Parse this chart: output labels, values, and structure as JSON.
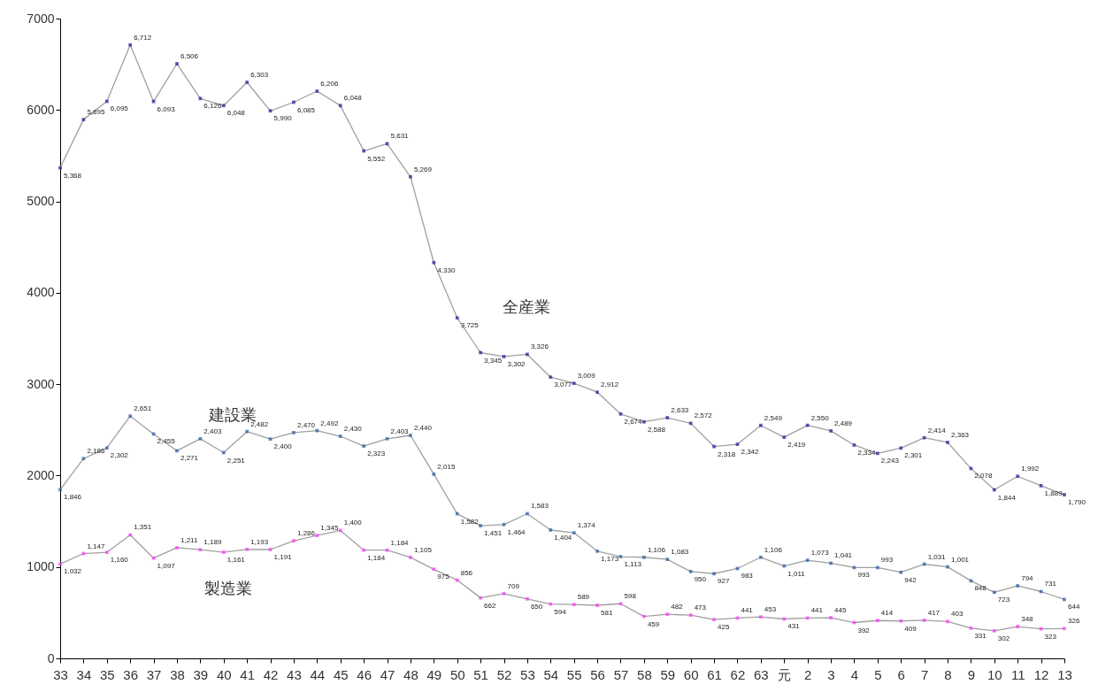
{
  "chart_data": {
    "type": "line",
    "categories": [
      "33",
      "34",
      "35",
      "36",
      "37",
      "38",
      "39",
      "40",
      "41",
      "42",
      "43",
      "44",
      "45",
      "46",
      "47",
      "48",
      "49",
      "50",
      "51",
      "52",
      "53",
      "54",
      "55",
      "56",
      "57",
      "58",
      "59",
      "60",
      "61",
      "62",
      "63",
      "元",
      "2",
      "3",
      "4",
      "5",
      "6",
      "7",
      "8",
      "9",
      "10",
      "11",
      "12",
      "13"
    ],
    "series": [
      {
        "name": "全産業",
        "color": "#1a1a9a",
        "values": [
          5368,
          5895,
          6095,
          6712,
          6093,
          6506,
          6126,
          6048,
          6303,
          5990,
          6085,
          6206,
          6048,
          5552,
          5631,
          5269,
          4330,
          3725,
          3345,
          3302,
          3326,
          3077,
          3009,
          2912,
          2674,
          2588,
          2633,
          2572,
          2318,
          2342,
          2549,
          2419,
          2550,
          2489,
          2334,
          2243,
          2301,
          2414,
          2363,
          2078,
          1844,
          1992,
          1889,
          1790
        ],
        "value_labels": [
          "5,368",
          "5,895",
          "6,095",
          "6,712",
          "6,093",
          "6,506",
          "6,126",
          "6,048",
          "6,303",
          "5,990",
          "6,085",
          "6,206",
          "6,048",
          "5,552",
          "5,631",
          "5,269",
          "4,330",
          "3,725",
          "3,345",
          "3,302",
          "3,326",
          "3,077",
          "3,009",
          "2,912",
          "2,674",
          "2,588",
          "2,633",
          "2,572",
          "2,318",
          "2,342",
          "2,549",
          "2,419",
          "2,550",
          "2,489",
          "2,334",
          "2,243",
          "2,301",
          "2,414",
          "2,363",
          "2,078",
          "1,844",
          "1,992",
          "1,889",
          "1,790"
        ]
      },
      {
        "name": "建設業",
        "color": "#2a5aa0",
        "values": [
          1846,
          2186,
          2302,
          2651,
          2455,
          2271,
          2403,
          2251,
          2482,
          2400,
          2470,
          2492,
          2430,
          2323,
          2403,
          2440,
          2015,
          1582,
          1451,
          1464,
          1583,
          1404,
          1374,
          1173,
          1113,
          1106,
          1083,
          950,
          927,
          983,
          1106,
          1011,
          1073,
          1041,
          993,
          993,
          942,
          1031,
          1001,
          848,
          723,
          794,
          731,
          644
        ],
        "value_labels": [
          "1,846",
          "2,186",
          "2,302",
          "2,651",
          "2,455",
          "2,271",
          "2,403",
          "2,251",
          "2,482",
          "2,400",
          "2,470",
          "2,492",
          "2,430",
          "2,323",
          "2,403",
          "2,440",
          "2,015",
          "1,582",
          "1,451",
          "1,464",
          "1,583",
          "1,404",
          "1,374",
          "1,173",
          "1,113",
          "1,106",
          "1,083",
          "950",
          "927",
          "983",
          "1,106",
          "1,011",
          "1,073",
          "1,041",
          "993",
          "993",
          "942",
          "1,031",
          "1,001",
          "848",
          "723",
          "794",
          "731",
          "644"
        ]
      },
      {
        "name": "製造業",
        "color": "#ff33ff",
        "values": [
          1032,
          1147,
          1160,
          1351,
          1097,
          1211,
          1189,
          1161,
          1193,
          1191,
          1286,
          1345,
          1400,
          1184,
          1184,
          1105,
          975,
          856,
          662,
          709,
          650,
          594,
          589,
          581,
          598,
          459,
          482,
          473,
          425,
          441,
          453,
          431,
          441,
          445,
          392,
          414,
          409,
          417,
          403,
          331,
          302,
          348,
          323,
          326
        ],
        "value_labels": [
          "1,032",
          "1,147",
          "1,160",
          "1,351",
          "1,097",
          "1,211",
          "1,189",
          "1,161",
          "1,193",
          "1,191",
          "1,286",
          "1,345",
          "1,400",
          "1,184",
          "1,184",
          "1,105",
          "975",
          "856",
          "662",
          "709",
          "650",
          "594",
          "589",
          "581",
          "598",
          "459",
          "482",
          "473",
          "425",
          "441",
          "453",
          "431",
          "441",
          "445",
          "392",
          "414",
          "409",
          "417",
          "403",
          "331",
          "302",
          "348",
          "323",
          "326"
        ]
      }
    ],
    "ylim": [
      0,
      7000
    ],
    "yticks": [
      0,
      1000,
      2000,
      3000,
      4000,
      5000,
      6000,
      7000
    ],
    "grid": false,
    "marker": "square",
    "line_style": "solid"
  }
}
